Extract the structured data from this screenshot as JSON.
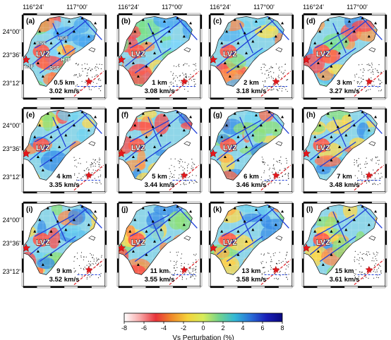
{
  "figure": {
    "lon_labels": [
      "116°24'",
      "117°00'"
    ],
    "lat_labels": [
      "24°00'",
      "23°36'",
      "23°12'"
    ],
    "anomaly_label": "LVZ",
    "fault_labels": [
      "CSF",
      "HGF",
      "HJF",
      "LJF",
      "RSF"
    ],
    "panels": [
      {
        "label": "(a)",
        "depth": "0.5 km",
        "velocity": "3.02 km/s"
      },
      {
        "label": "(b)",
        "depth": "1 km",
        "velocity": "3.08 km/s"
      },
      {
        "label": "(c)",
        "depth": "2 km",
        "velocity": "3.18 km/s"
      },
      {
        "label": "(d)",
        "depth": "3 km",
        "velocity": "3.27 km/s"
      },
      {
        "label": "(e)",
        "depth": "4 km",
        "velocity": "3.35 km/s"
      },
      {
        "label": "(f)",
        "depth": "5 km",
        "velocity": "3.44 km/s"
      },
      {
        "label": "(g)",
        "depth": "6 km",
        "velocity": "3.46 km/s"
      },
      {
        "label": "(h)",
        "depth": "7 km",
        "velocity": "3.48 km/s"
      },
      {
        "label": "(i)",
        "depth": "9 km",
        "velocity": "3.52 km/s"
      },
      {
        "label": "(j)",
        "depth": "11 km",
        "velocity": "3.55 km/s"
      },
      {
        "label": "(k)",
        "depth": "13 km",
        "velocity": "3.58 km/s"
      },
      {
        "label": "(l)",
        "depth": "15 km",
        "velocity": "3.61 km/s"
      }
    ],
    "colorbar": {
      "ticks": [
        "-8",
        "-6",
        "-4",
        "-2",
        "0",
        "2",
        "4",
        "6",
        "8"
      ],
      "title": "Vs Perturbation (%)",
      "stops": [
        "#ffffff",
        "#f7a8a8",
        "#e8333a",
        "#f08a2a",
        "#f5d23a",
        "#d7ec5a",
        "#72d38c",
        "#33b8d6",
        "#2a6fd8",
        "#1a1fb8",
        "#0a0a80"
      ]
    },
    "colors": {
      "fault": "#1f3fd8",
      "station": "#000000",
      "star": "#e8161b",
      "coast": "#111111"
    }
  }
}
